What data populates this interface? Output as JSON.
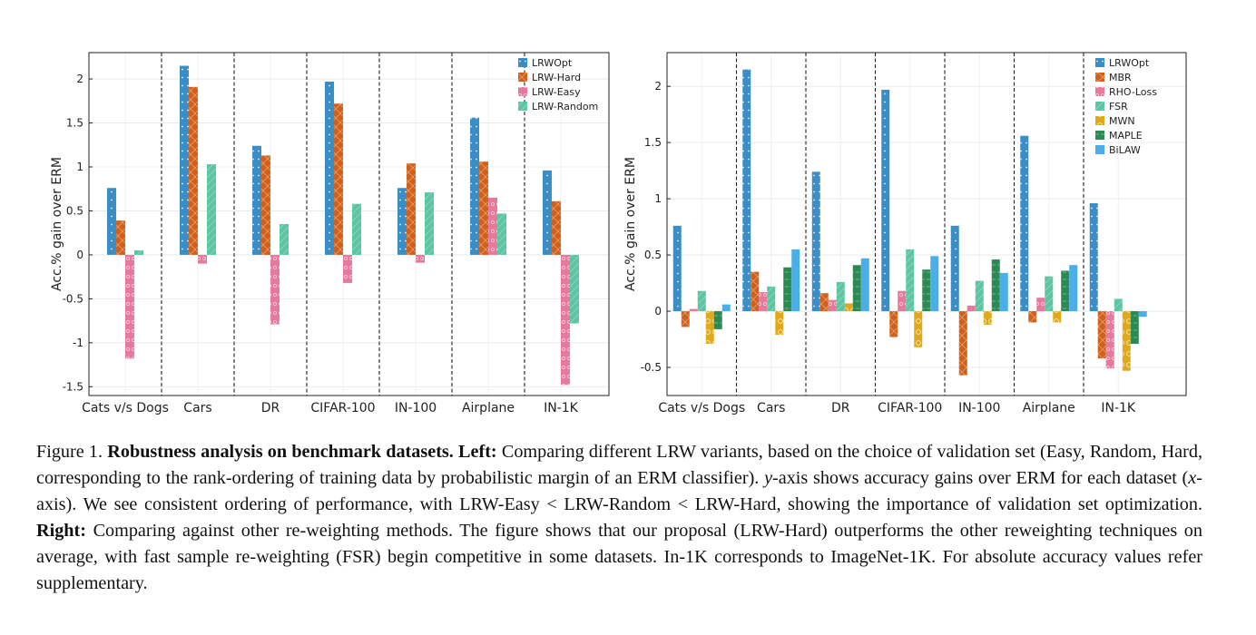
{
  "caption": {
    "label": "Figure 1.",
    "bold_title": "Robustness analysis on benchmark datasets.",
    "left_label": "Left:",
    "left_text_1": "Comparing different LRW variants, based on the choice of validation set (Easy, Random, Hard, corresponding to the rank-ordering of training data by probabilistic margin of an ERM classifier).",
    "y_italic": "y",
    "left_text_2": "-axis shows accuracy gains over ERM for each dataset (",
    "x_italic": "x",
    "left_text_3": "-axis). We see consistent ordering of performance, with LRW-Easy < LRW-Random < LRW-Hard, showing the importance of validation set optimization.",
    "right_label": "Right:",
    "right_text": "Comparing against other re-weighting methods. The figure shows that our proposal (LRW-Hard) outperforms the other reweighting techniques on average, with fast sample re-weighting (FSR) begin competitive in some datasets. In-1K corresponds to ImageNet-1K. For absolute accuracy values refer supplementary."
  },
  "colors": {
    "LRWOpt": "#3a8dc5",
    "LRW-Hard": "#d2601a",
    "LRW-Easy": "#e7799b",
    "LRW-Random": "#5cc5a2",
    "MBR": "#d2601a",
    "RHO-Loss": "#e7799b",
    "FSR": "#5cc5a2",
    "MWN": "#e0a91a",
    "MAPLE": "#2a8a52",
    "BiLAW": "#4aaee8"
  },
  "chart_data": [
    {
      "type": "bar",
      "panel": "left",
      "ylabel": "Acc.% gain over ERM",
      "ylim": [
        -1.6,
        2.3
      ],
      "yticks": [
        -1.5,
        -1,
        -0.5,
        0,
        0.5,
        1,
        1.5,
        2
      ],
      "ytick_labels": [
        "-1.5",
        "-1",
        "-0.5",
        "0",
        "0.5",
        "1",
        "1.5",
        "2"
      ],
      "categories": [
        "Cats v/s Dogs",
        "Cars",
        "DR",
        "CIFAR-100",
        "IN-100",
        "Airplane",
        "IN-1K"
      ],
      "grid": true,
      "legend_position": "top-right",
      "series": [
        {
          "name": "LRWOpt",
          "values": [
            0.76,
            2.15,
            1.24,
            1.97,
            0.76,
            1.56,
            0.96
          ]
        },
        {
          "name": "LRW-Hard",
          "values": [
            0.39,
            1.91,
            1.13,
            1.72,
            1.04,
            1.06,
            0.61
          ]
        },
        {
          "name": "LRW-Easy",
          "values": [
            -1.18,
            -0.1,
            -0.79,
            -0.32,
            -0.09,
            0.65,
            -1.48
          ]
        },
        {
          "name": "LRW-Random",
          "values": [
            0.05,
            1.03,
            0.35,
            0.58,
            0.71,
            0.47,
            -0.78
          ]
        }
      ]
    },
    {
      "type": "bar",
      "panel": "right",
      "ylabel": "Acc.% gain over ERM",
      "ylim": [
        -0.75,
        2.3
      ],
      "yticks": [
        -0.5,
        0,
        0.5,
        1,
        1.5,
        2
      ],
      "ytick_labels": [
        "-0.5",
        "0",
        "0.5",
        "1",
        "1.5",
        "2"
      ],
      "categories": [
        "Cats v/s Dogs",
        "Cars",
        "DR",
        "CIFAR-100",
        "IN-100",
        "Airplane",
        "IN-1K"
      ],
      "grid": true,
      "legend_position": "top-right",
      "series": [
        {
          "name": "LRWOpt",
          "values": [
            0.76,
            2.15,
            1.24,
            1.97,
            0.76,
            1.56,
            0.96
          ]
        },
        {
          "name": "MBR",
          "values": [
            -0.14,
            0.35,
            0.16,
            -0.23,
            -0.57,
            -0.1,
            -0.42
          ]
        },
        {
          "name": "RHO-Loss",
          "values": [
            0.02,
            0.17,
            0.1,
            0.18,
            0.05,
            0.12,
            -0.51
          ]
        },
        {
          "name": "FSR",
          "values": [
            0.18,
            0.22,
            0.26,
            0.55,
            0.27,
            0.31,
            0.11
          ]
        },
        {
          "name": "MWN",
          "values": [
            -0.29,
            -0.21,
            0.07,
            -0.32,
            -0.12,
            -0.1,
            -0.53
          ]
        },
        {
          "name": "MAPLE",
          "values": [
            -0.16,
            0.39,
            0.41,
            0.37,
            0.46,
            0.36,
            -0.29
          ]
        },
        {
          "name": "BiLAW",
          "values": [
            0.06,
            0.55,
            0.47,
            0.49,
            0.34,
            0.41,
            -0.05
          ]
        }
      ]
    }
  ]
}
